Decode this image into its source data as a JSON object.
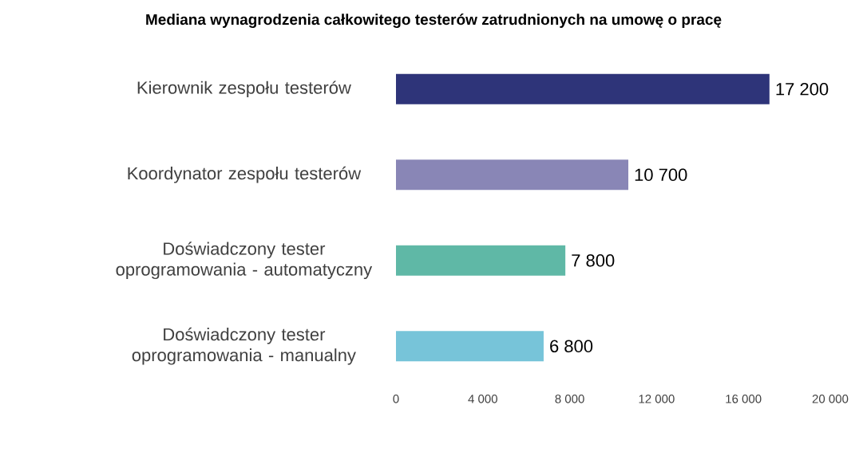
{
  "chart_data": {
    "type": "bar",
    "orientation": "horizontal",
    "title": "Mediana wynagrodzenia całkowitego testerów zatrudnionych na umowę o pracę",
    "categories": [
      "Kierownik zespołu testerów",
      "Koordynator zespołu testerów",
      "Doświadczony tester oprogramowania - automatyczny",
      "Doświadczony tester oprogramowania - manualny"
    ],
    "values": [
      17200,
      10700,
      7800,
      6800
    ],
    "value_labels": [
      "17 200",
      "10 700",
      "7 800",
      "6 800"
    ],
    "colors": [
      "#2e3479",
      "#8986b6",
      "#5fb8a6",
      "#77c4d9"
    ],
    "xlim": [
      0,
      20000
    ],
    "xticks": [
      0,
      {
        "value": 4000,
        "label": "4 000"
      },
      {
        "value": 8000,
        "label": "8 000"
      },
      {
        "value": 12000,
        "label": "12 000"
      },
      {
        "value": 16000,
        "label": "16 000"
      },
      {
        "value": 20000,
        "label": "20 000"
      }
    ]
  }
}
